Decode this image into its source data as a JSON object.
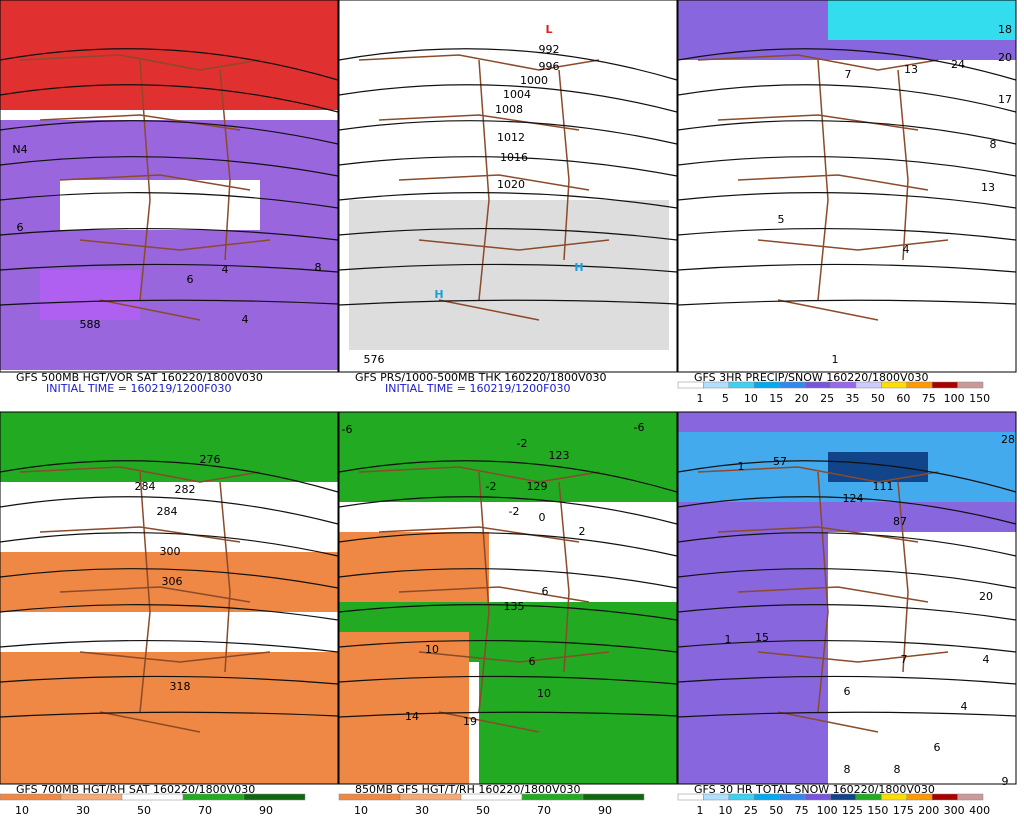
{
  "panels": [
    {
      "caption": "GFS 500MB HGT/VOR SAT 160220/1800V030",
      "initial_time": "INITIAL TIME = 160219/1200F030",
      "map_labels": [
        "588",
        "4",
        "6",
        "N4",
        "8",
        "6",
        "4"
      ]
    },
    {
      "caption": "GFS PRS/1000-500MB THK 160220/1800V030",
      "initial_time": "INITIAL TIME = 160219/1200F030",
      "map_labels": [
        "L",
        "992",
        "996",
        "1000",
        "1004",
        "1008",
        "1012",
        "1016",
        "1020",
        "H",
        "H",
        "576"
      ]
    },
    {
      "caption": "GFS 3HR PRECIP/SNOW 160220/1800V030",
      "colorbar_labels": [
        "1",
        "5",
        "10",
        "15",
        "20",
        "25",
        "35",
        "50",
        "60",
        "75",
        "100",
        "150"
      ],
      "map_labels": [
        "7",
        "13",
        "24",
        "20",
        "18",
        "17",
        "8",
        "13",
        "5",
        "4",
        "1"
      ]
    },
    {
      "caption": "GFS 700MB HGT/RH SAT 160220/1800V030",
      "colorbar_labels": [
        "10",
        "30",
        "50",
        "70",
        "90"
      ],
      "map_labels": [
        "276",
        "282",
        "284",
        "284",
        "300",
        "306",
        "318"
      ]
    },
    {
      "caption": "850MB GFS HGT/T/RH 160220/1800V030",
      "colorbar_labels": [
        "10",
        "30",
        "50",
        "70",
        "90"
      ],
      "map_labels": [
        "-6",
        "-2",
        "-6",
        "123",
        "129",
        "-2",
        "-2",
        "0",
        "2",
        "6",
        "135",
        "10",
        "6",
        "10",
        "14",
        "19"
      ]
    },
    {
      "caption": "GFS 30 HR TOTAL SNOW 160220/1800V030",
      "colorbar_labels": [
        "1",
        "10",
        "25",
        "50",
        "75",
        "100",
        "125",
        "150",
        "175",
        "200",
        "300",
        "400"
      ],
      "map_labels": [
        "1",
        "57",
        "124",
        "111",
        "87",
        "28",
        "20",
        "1",
        "15",
        "7",
        "4",
        "6",
        "4",
        "6",
        "8",
        "8",
        "9"
      ]
    }
  ]
}
